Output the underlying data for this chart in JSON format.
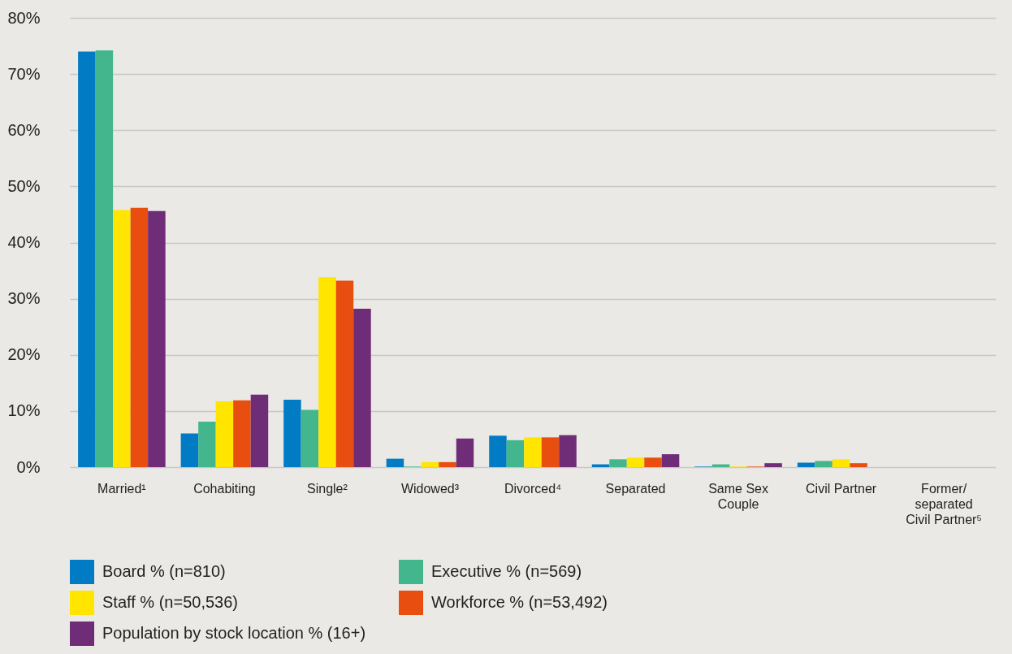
{
  "chart_data": {
    "type": "bar",
    "categories": [
      "Married¹",
      "Cohabiting",
      "Single²",
      "Widowed³",
      "Divorced⁴",
      "Separated",
      "Same Sex Couple",
      "Civil Partner",
      "Former/ separated Civil Partner⁵"
    ],
    "series": [
      {
        "name": "Board % (n=810)",
        "color": "#007bc4",
        "values": [
          74.0,
          6.0,
          12.0,
          1.5,
          5.6,
          0.5,
          0.1,
          0.8,
          0
        ]
      },
      {
        "name": "Executive % (n=569)",
        "color": "#44b68e",
        "values": [
          74.2,
          8.1,
          10.2,
          0.1,
          4.8,
          1.4,
          0.5,
          1.1,
          0
        ]
      },
      {
        "name": "Staff % (n=50,536)",
        "color": "#ffe500",
        "values": [
          45.8,
          11.7,
          33.8,
          0.9,
          5.3,
          1.7,
          0.1,
          1.4,
          0
        ]
      },
      {
        "name": "Workforce % (n=53,492)",
        "color": "#e84e10",
        "values": [
          46.2,
          11.9,
          33.2,
          0.9,
          5.3,
          1.7,
          0.1,
          0.7,
          0
        ]
      },
      {
        "name": "Population by stock location % (16+)",
        "color": "#6f2d77",
        "values": [
          45.6,
          12.9,
          28.2,
          5.1,
          5.7,
          2.3,
          0.7,
          0,
          0
        ]
      }
    ],
    "ylim": [
      0,
      80
    ],
    "yticks": [
      {
        "value": 0,
        "label": "0%"
      },
      {
        "value": 10,
        "label": "10%"
      },
      {
        "value": 20,
        "label": "20%"
      },
      {
        "value": 30,
        "label": "30%"
      },
      {
        "value": 40,
        "label": "40%"
      },
      {
        "value": 50,
        "label": "50%"
      },
      {
        "value": 60,
        "label": "60%"
      },
      {
        "value": 70,
        "label": "70%"
      },
      {
        "value": 80,
        "label": "80%"
      }
    ],
    "grid": "y",
    "legend": "bottom"
  }
}
